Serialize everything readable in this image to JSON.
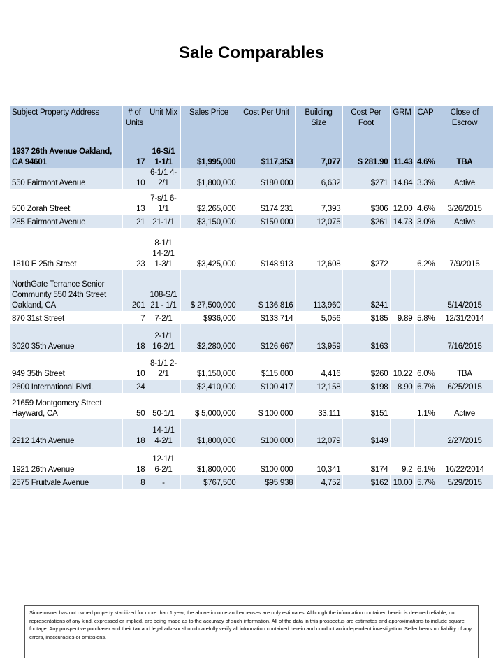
{
  "title": "Sale Comparables",
  "table": {
    "header": [
      "Subject Property Address",
      "# of Units",
      "Unit Mix",
      "Sales Price",
      "Cost Per Unit",
      "Building Size",
      "Cost Per Foot",
      "GRM",
      "CAP",
      "Close of Escrow"
    ],
    "rows": [
      [
        "1937 26th Avenue Oakland, CA 94601",
        "17",
        "16-S/1 1-1/1",
        "$1,995,000",
        "$117,353",
        "7,077",
        "$ 281.90",
        "11.43",
        "4.6%",
        "TBA"
      ],
      [
        "550 Fairmont Avenue",
        "10",
        "6-1/1 4-2/1",
        "$1,800,000",
        "$180,000",
        "6,632",
        "$271",
        "14.84",
        "3.3%",
        "Active"
      ],
      [
        "500 Zorah Street",
        "13",
        "7-s/1 6-1/1",
        "$2,265,000",
        "$174,231",
        "7,393",
        "$306",
        "12.00",
        "4.6%",
        "3/26/2015"
      ],
      [
        "285 Fairmont Avenue",
        "21",
        "21-1/1",
        "$3,150,000",
        "$150,000",
        "12,075",
        "$261",
        "14.73",
        "3.0%",
        "Active"
      ],
      [
        "1810 E 25th Street",
        "23",
        "8-1/1 14-2/1 1-3/1",
        "$3,425,000",
        "$148,913",
        "12,608",
        "$272",
        null,
        "6.2%",
        "7/9/2015"
      ],
      [
        "NorthGate Terrance Senior Community 550 24th Street Oakland, CA",
        "201",
        "108-S/1 21 - 1/1",
        "$ 27,500,000",
        "$ 136,816",
        "113,960",
        "$241",
        null,
        null,
        "5/14/2015"
      ],
      [
        "870 31st Street",
        "7",
        "7-2/1",
        "$936,000",
        "$133,714",
        "5,056",
        "$185",
        "9.89",
        "5.8%",
        "12/31/2014"
      ],
      [
        "3020 35th Avenue",
        "18",
        "2-1/1 16-2/1",
        "$2,280,000",
        "$126,667",
        "13,959",
        "$163",
        null,
        null,
        "7/16/2015"
      ],
      [
        "949 35th Street",
        "10",
        "8-1/1 2-2/1",
        "$1,150,000",
        "$115,000",
        "4,416",
        "$260",
        "10.22",
        "6.0%",
        "TBA"
      ],
      [
        "2600 International Blvd.",
        "24",
        null,
        "$2,410,000",
        "$100,417",
        "12,158",
        "$198",
        "8.90",
        "6.7%",
        "6/25/2015"
      ],
      [
        "21659 Montgomery Street Hayward, CA",
        "50",
        "50-1/1",
        "$ 5,000,000",
        "$ 100,000",
        "33,111",
        "$151",
        null,
        "1.1%",
        "Active"
      ],
      [
        "2912 14th Avenue",
        "18",
        "14-1/1 4-2/1",
        "$1,800,000",
        "$100,000",
        "12,079",
        "$149",
        null,
        null,
        "2/27/2015"
      ],
      [
        "1921 26th Avenue",
        "18",
        "12-1/1 6-2/1",
        "$1,800,000",
        "$100,000",
        "10,341",
        "$174",
        "9.2",
        "6.1%",
        "10/22/2014"
      ],
      [
        "2575 Fruitvale Avenue",
        "8",
        "-",
        "$767,500",
        "$95,938",
        "4,752",
        "$162",
        "10.00",
        "5.7%",
        "5/29/2015"
      ]
    ]
  },
  "disclaimer": "Since owner has not owned property stabilized for more than 1 year, the above income and expenses are only estimates. Although the information contained herein is deemed reliable, no representations of any kind, expressed or implied, are being made as to the accuracy of such information. All of the data in this prospectus are estimates and approximations to include square footage. Any prospective purchaser and their tax and legal advisor should carefully verify all information contained herein and conduct an independent investigation. Seller bears no liability of any errors, inaccuracies or omissions."
}
